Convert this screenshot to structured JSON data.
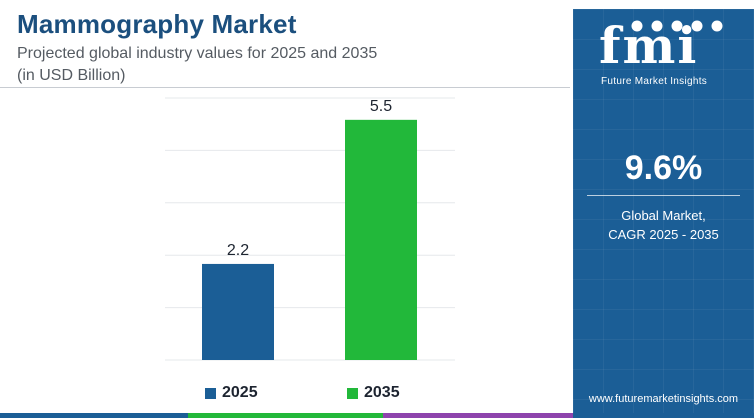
{
  "header": {
    "title": "Mammography Market",
    "subtitle_line1": "Projected global industry values for 2025 and 2035",
    "subtitle_line2": "(in USD Billion)"
  },
  "chart_data": {
    "type": "bar",
    "categories": [
      "2025",
      "2035"
    ],
    "values": [
      2.2,
      5.5
    ],
    "ylim": [
      0,
      6
    ],
    "grid": true,
    "legend_position": "bottom",
    "colors": [
      "#1b5e96",
      "#22b83a"
    ],
    "data_labels": [
      "2.2",
      "5.5"
    ]
  },
  "legend": {
    "items": [
      {
        "label": "2025",
        "color": "#1b5e96"
      },
      {
        "label": "2035",
        "color": "#22b83a"
      }
    ]
  },
  "side_panel": {
    "logo_text": "fmi",
    "logo_tagline": "Future Market Insights",
    "cagr_value": "9.6%",
    "cagr_label_line1": "Global Market,",
    "cagr_label_line2": "CAGR 2025 - 2035",
    "website": "www.futuremarketinsights.com",
    "background_color": "#1b5e96"
  },
  "bottom_strip_colors": [
    "#1b5e96",
    "#22b83a",
    "#8e44ad",
    "#1b5e96"
  ]
}
